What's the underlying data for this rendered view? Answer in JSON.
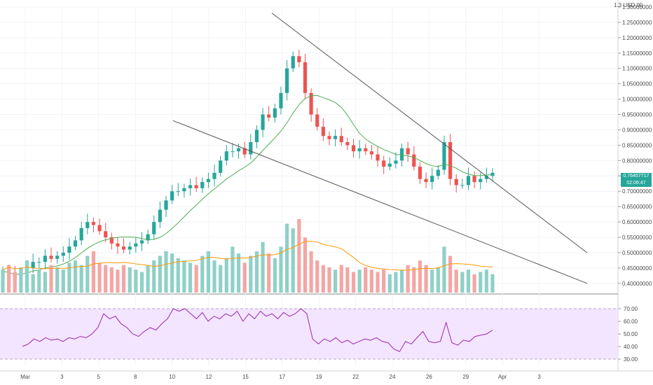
{
  "header": {
    "currency": "1.3 USD 00"
  },
  "price_badge": {
    "price": "0.76457717",
    "countdown": "02:06:47"
  },
  "colors": {
    "up": "#26a69a",
    "down": "#ef5350",
    "vol_up": "#8fd0c8",
    "vol_down": "#f4a6a4",
    "ma": "#4caf50",
    "vol_ma": "#ff9800",
    "rsi_line": "#9c27b0",
    "rsi_band": "#f3e5ff",
    "trendline": "#555555"
  },
  "chart_data": {
    "type": "candlestick",
    "y_axis": {
      "range": [
        0.37,
        1.3
      ],
      "ticks": [
        "1.30000000",
        "1.25000000",
        "1.20000000",
        "1.15000000",
        "1.10000000",
        "1.05000000",
        "1.00000000",
        "0.95000000",
        "0.90000000",
        "0.85000000",
        "0.80000000",
        "0.75000000",
        "0.70000000",
        "0.65000000",
        "0.60000000",
        "0.55000000",
        "0.50000000",
        "0.45000000",
        "0.40000000"
      ]
    },
    "x_axis": {
      "ticks": [
        "Mar",
        "3",
        "5",
        "8",
        "10",
        "12",
        "15",
        "17",
        "19",
        "22",
        "24",
        "26",
        "29",
        "Apr",
        "3"
      ]
    },
    "price_close": [
      0.44,
      0.43,
      0.42,
      0.43,
      0.45,
      0.47,
      0.47,
      0.49,
      0.48,
      0.49,
      0.5,
      0.52,
      0.54,
      0.58,
      0.6,
      0.59,
      0.57,
      0.55,
      0.53,
      0.52,
      0.51,
      0.52,
      0.53,
      0.54,
      0.56,
      0.6,
      0.64,
      0.67,
      0.7,
      0.7,
      0.71,
      0.72,
      0.71,
      0.73,
      0.74,
      0.76,
      0.8,
      0.83,
      0.83,
      0.84,
      0.82,
      0.86,
      0.9,
      0.95,
      0.94,
      0.97,
      1.02,
      1.1,
      1.14,
      1.12,
      1.02,
      0.95,
      0.91,
      0.88,
      0.87,
      0.88,
      0.86,
      0.85,
      0.83,
      0.84,
      0.83,
      0.82,
      0.8,
      0.78,
      0.79,
      0.8,
      0.84,
      0.82,
      0.78,
      0.74,
      0.73,
      0.75,
      0.77,
      0.86,
      0.74,
      0.72,
      0.72,
      0.75,
      0.73,
      0.74,
      0.75,
      0.76
    ],
    "rsi": {
      "ticks": [
        "70.00",
        "60.00",
        "50.00",
        "40.00",
        "30.00"
      ],
      "band": [
        30,
        70
      ],
      "range": [
        25,
        75
      ],
      "values": [
        40,
        42,
        46,
        44,
        47,
        45,
        46,
        44,
        47,
        46,
        48,
        47,
        50,
        55,
        66,
        62,
        64,
        58,
        55,
        50,
        48,
        52,
        55,
        53,
        58,
        62,
        70,
        68,
        70,
        66,
        62,
        67,
        60,
        64,
        62,
        66,
        64,
        68,
        60,
        66,
        62,
        68,
        64,
        66,
        62,
        67,
        64,
        66,
        70,
        66,
        46,
        42,
        46,
        44,
        47,
        43,
        45,
        42,
        44,
        46,
        45,
        47,
        44,
        43,
        38,
        36,
        44,
        42,
        47,
        52,
        44,
        43,
        44,
        59,
        43,
        41,
        45,
        44,
        48,
        49,
        50,
        53
      ]
    },
    "volume": [
      10,
      12,
      9,
      11,
      14,
      8,
      10,
      9,
      12,
      11,
      10,
      13,
      14,
      12,
      16,
      18,
      13,
      12,
      11,
      10,
      12,
      11,
      10,
      9,
      12,
      14,
      16,
      18,
      17,
      15,
      14,
      13,
      12,
      16,
      18,
      14,
      12,
      15,
      20,
      17,
      13,
      16,
      18,
      22,
      17,
      15,
      20,
      30,
      28,
      32,
      24,
      18,
      14,
      12,
      11,
      10,
      12,
      11,
      9,
      10,
      11,
      10,
      9,
      10,
      8,
      9,
      10,
      12,
      11,
      14,
      12,
      10,
      11,
      20,
      16,
      10,
      9,
      10,
      8,
      9,
      10,
      8
    ],
    "trendlines": [
      {
        "from": [
          0.44,
          1.28
        ],
        "to": [
          0.95,
          0.5
        ]
      },
      {
        "from": [
          0.28,
          0.93
        ],
        "to": [
          0.95,
          0.4
        ]
      }
    ]
  }
}
